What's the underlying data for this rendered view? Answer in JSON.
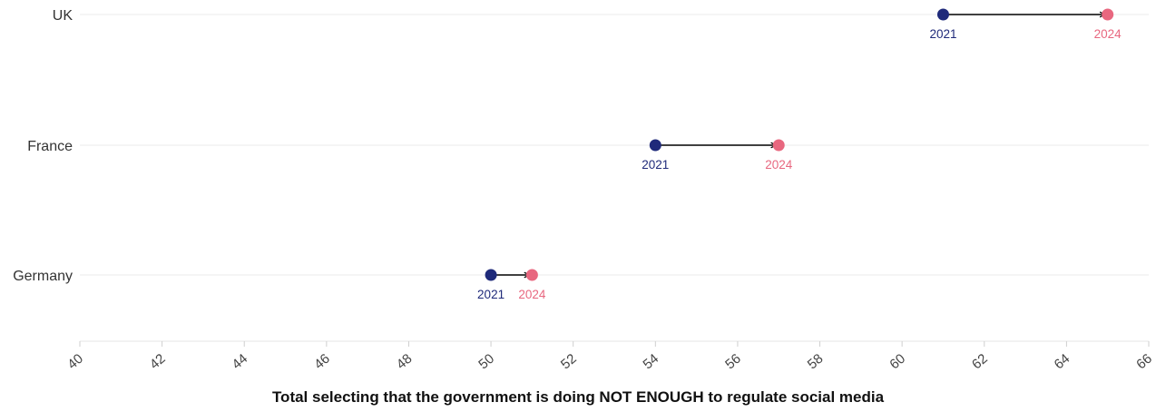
{
  "chart_data": {
    "type": "dumbbell",
    "xlabel": "Total selecting that the government is doing NOT ENOUGH to regulate social media",
    "xlim": [
      40,
      66
    ],
    "xticks": [
      40,
      42,
      44,
      46,
      48,
      50,
      52,
      54,
      56,
      58,
      60,
      62,
      64,
      66
    ],
    "categories": [
      "UK",
      "France",
      "Germany"
    ],
    "series": [
      {
        "name": "2021",
        "color": "#1f2a7a",
        "values": [
          61,
          54,
          50
        ]
      },
      {
        "name": "2024",
        "color": "#e8677f",
        "values": [
          65,
          57,
          51
        ]
      }
    ],
    "grid": "horizontal",
    "arrow_color": "#000000"
  }
}
